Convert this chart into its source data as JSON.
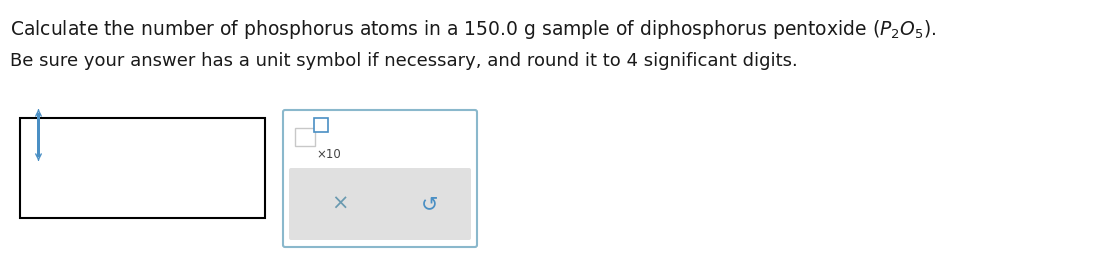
{
  "line1": "Calculate the number of phosphorus atoms in a 150.0 g sample of diphosphorus pentoxide ",
  "line1_formula": "$(P_2O_5)$.",
  "line2": "Be sure your answer has a unit symbol if necessary, and round it to 4 significant digits.",
  "background_color": "#ffffff",
  "text_color": "#1a1a1a",
  "input_box_border": "#000000",
  "input_box_fill": "#ffffff",
  "answer_box_border": "#8ab8cc",
  "answer_box_fill": "#ffffff",
  "btn_bar_fill": "#e0e0e0",
  "btn_bar_border": "#e0e0e0",
  "cursor_color": "#4a8fc4",
  "small_sq_border": "#c8c8c8",
  "small_sq_fill": "#ffffff",
  "super_sq_border": "#4a8fc4",
  "super_sq_fill": "#ffffff",
  "x_color": "#6a9ab0",
  "redo_color": "#4a8fc4",
  "font_size_line1": 13.5,
  "font_size_line2": 13.0,
  "font_size_x10": 8.5,
  "font_size_btn": 15
}
